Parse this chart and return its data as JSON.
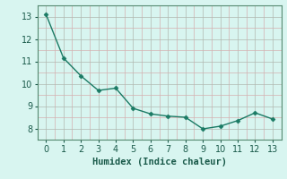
{
  "x": [
    0,
    1,
    2,
    3,
    4,
    5,
    6,
    7,
    8,
    9,
    10,
    11,
    12,
    13
  ],
  "y": [
    13.1,
    11.15,
    10.35,
    9.7,
    9.8,
    8.9,
    8.65,
    8.55,
    8.5,
    7.98,
    8.1,
    8.35,
    8.7,
    8.42
  ],
  "xlabel": "Humidex (Indice chaleur)",
  "line_color": "#1a7a64",
  "marker": "D",
  "marker_size": 2.5,
  "bg_color": "#d8f5f0",
  "ylim": [
    7.5,
    13.5
  ],
  "xlim": [
    -0.5,
    13.5
  ],
  "yticks": [
    8,
    9,
    10,
    11,
    12,
    13
  ],
  "xticks": [
    0,
    1,
    2,
    3,
    4,
    5,
    6,
    7,
    8,
    9,
    10,
    11,
    12,
    13
  ],
  "xlabel_fontsize": 7.5,
  "tick_fontsize": 7.0,
  "major_grid_color": "#b0b8b0",
  "minor_grid_color": "#d4b0b0"
}
